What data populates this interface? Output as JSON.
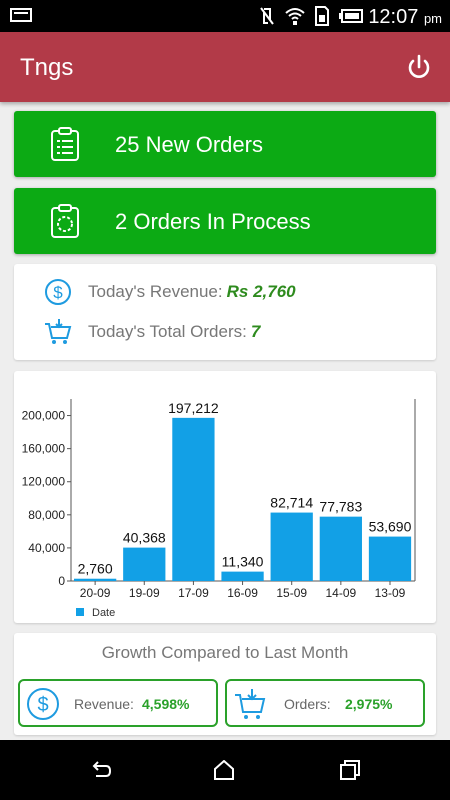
{
  "status_bar": {
    "time": "12:07",
    "ampm": "pm"
  },
  "app_bar": {
    "title": "Tngs"
  },
  "actions": {
    "new_orders_label": "25 New Orders",
    "in_process_label": "2 Orders In Process"
  },
  "summary": {
    "revenue_label": "Today's Revenue:",
    "revenue_value": "Rs 2,760",
    "orders_label": "Today's Total Orders:",
    "orders_value": "7"
  },
  "chart_data": {
    "type": "bar",
    "categories": [
      "20-09",
      "19-09",
      "17-09",
      "16-09",
      "15-09",
      "14-09",
      "13-09"
    ],
    "values": [
      2760,
      40368,
      197212,
      11340,
      82714,
      77783,
      53690
    ],
    "value_labels": [
      "2,760",
      "40,368",
      "197,212",
      "11,340",
      "82,714",
      "77,783",
      "53,690"
    ],
    "y_ticks": [
      "0",
      "40,000",
      "80,000",
      "120,000",
      "160,000",
      "200,000"
    ],
    "ylim": [
      0,
      220000
    ],
    "legend": [
      "Date"
    ],
    "legend_position": "bottom-left",
    "bar_color": "#12a0e6",
    "grid": false
  },
  "growth": {
    "title": "Growth Compared to Last Month",
    "revenue_label": "Revenue:",
    "revenue_value": "4,598%",
    "orders_label": "Orders:",
    "orders_value": "2,975%"
  },
  "colors": {
    "app_bar": "#b23a48",
    "action_green": "#0caa14",
    "value_green": "#2e8b1e"
  }
}
